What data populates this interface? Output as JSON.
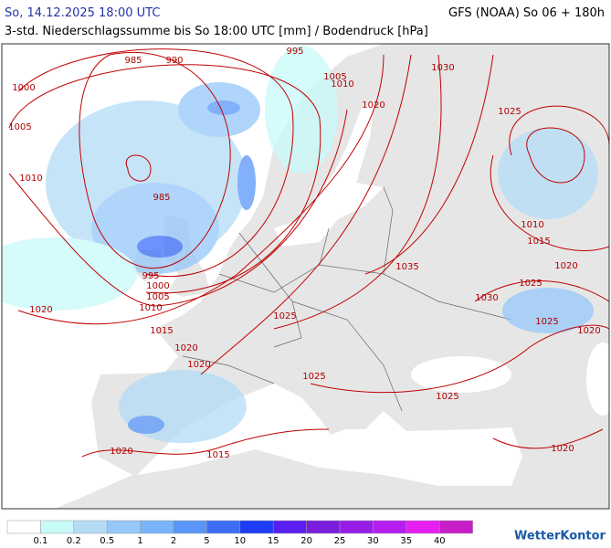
{
  "header": {
    "left": "So, 14.12.2025 18:00 UTC",
    "right": "GFS (NOAA) So 06 + 180h",
    "subtitle": "3-std. Niederschlagssumme bis So 18:00 UTC [mm] / Bodendruck [hPa]"
  },
  "isobar_labels": [
    985,
    990,
    995,
    1000,
    1005,
    1010,
    985,
    995,
    1000,
    1005,
    1010,
    1020,
    1015,
    1020,
    1020,
    1025,
    1025,
    1020,
    1015,
    1005,
    1010,
    1020,
    1030,
    1025,
    1010,
    1015,
    1020,
    1025,
    1035,
    1030,
    1025,
    1020,
    1025,
    1020
  ],
  "legend": {
    "values": [
      0.1,
      0.2,
      0.5,
      1,
      2,
      5,
      10,
      15,
      20,
      25,
      30,
      35,
      40
    ],
    "colors": [
      "#ffffff",
      "#c8fafa",
      "#b4dcf5",
      "#96c8fa",
      "#78b4fa",
      "#5a96fa",
      "#3c6efa",
      "#1e3cf5",
      "#5a1ef0",
      "#781edc",
      "#961ee6",
      "#b41ef0",
      "#e61ef0",
      "#c81ec8"
    ]
  },
  "brand": "WetterKontor"
}
